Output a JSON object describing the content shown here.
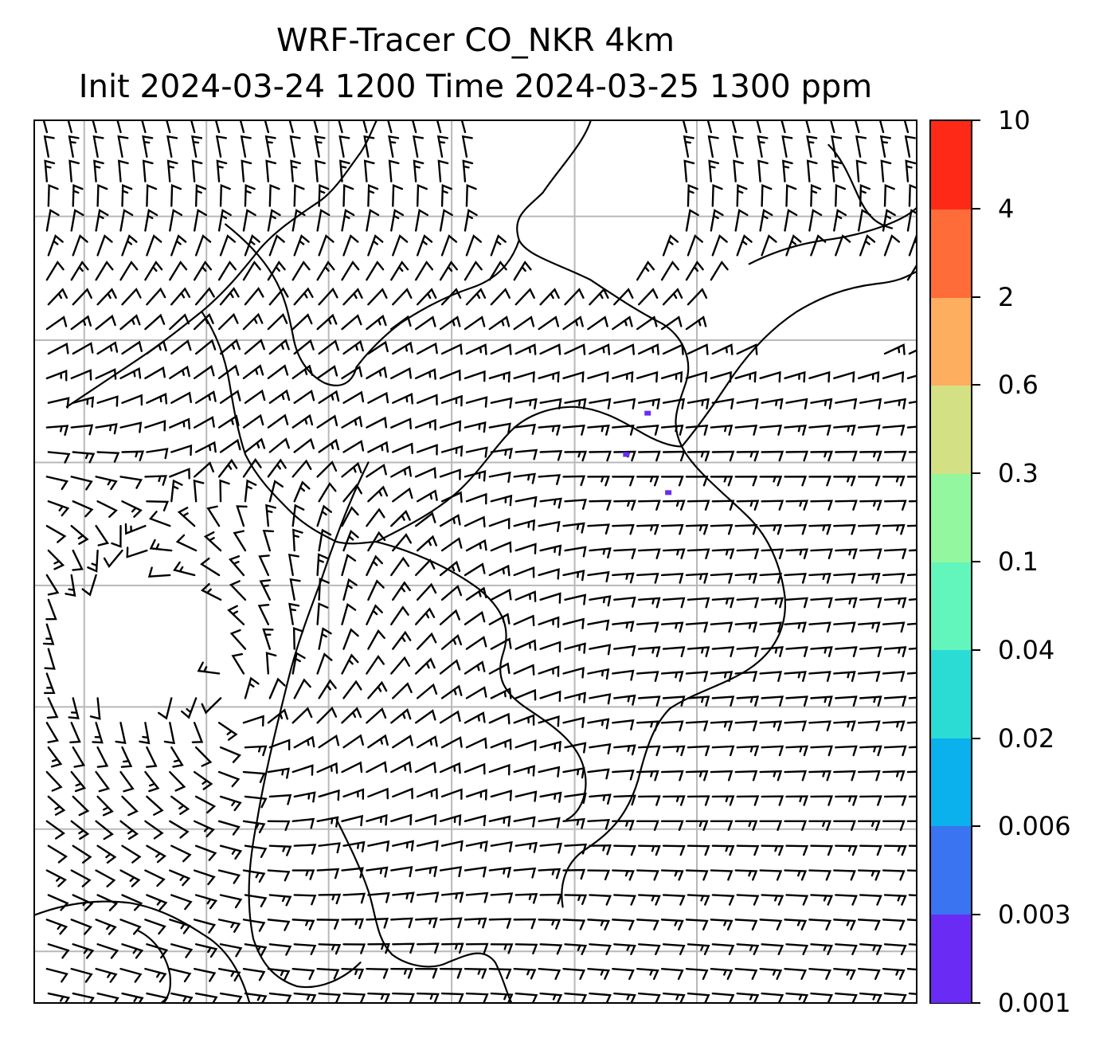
{
  "title": {
    "line1": "WRF-Tracer CO_NKR 4km",
    "line2": "Init 2024-03-24 1200 Time 2024-03-25 1300 ppm"
  },
  "map": {
    "description_layers": [
      "coastlines-borders",
      "lat-lon-gridlines",
      "wind-barbs",
      "calm-wind-circles",
      "tracer-concentration"
    ],
    "gridline_color": "#b8b8b8"
  },
  "colorbar": {
    "levels": [
      "0.001",
      "0.003",
      "0.006",
      "0.02",
      "0.04",
      "0.1",
      "0.3",
      "0.6",
      "2",
      "4",
      "10"
    ],
    "colors": [
      "#6a2bf5",
      "#3a74f0",
      "#0bb1ec",
      "#2bdcd5",
      "#63f6bc",
      "#93f79f",
      "#d3e084",
      "#fdae5f",
      "#fe6c39",
      "#fe2a17"
    ]
  },
  "tracer": {
    "spots_level": "0.001",
    "color": "#6a2bf5"
  }
}
